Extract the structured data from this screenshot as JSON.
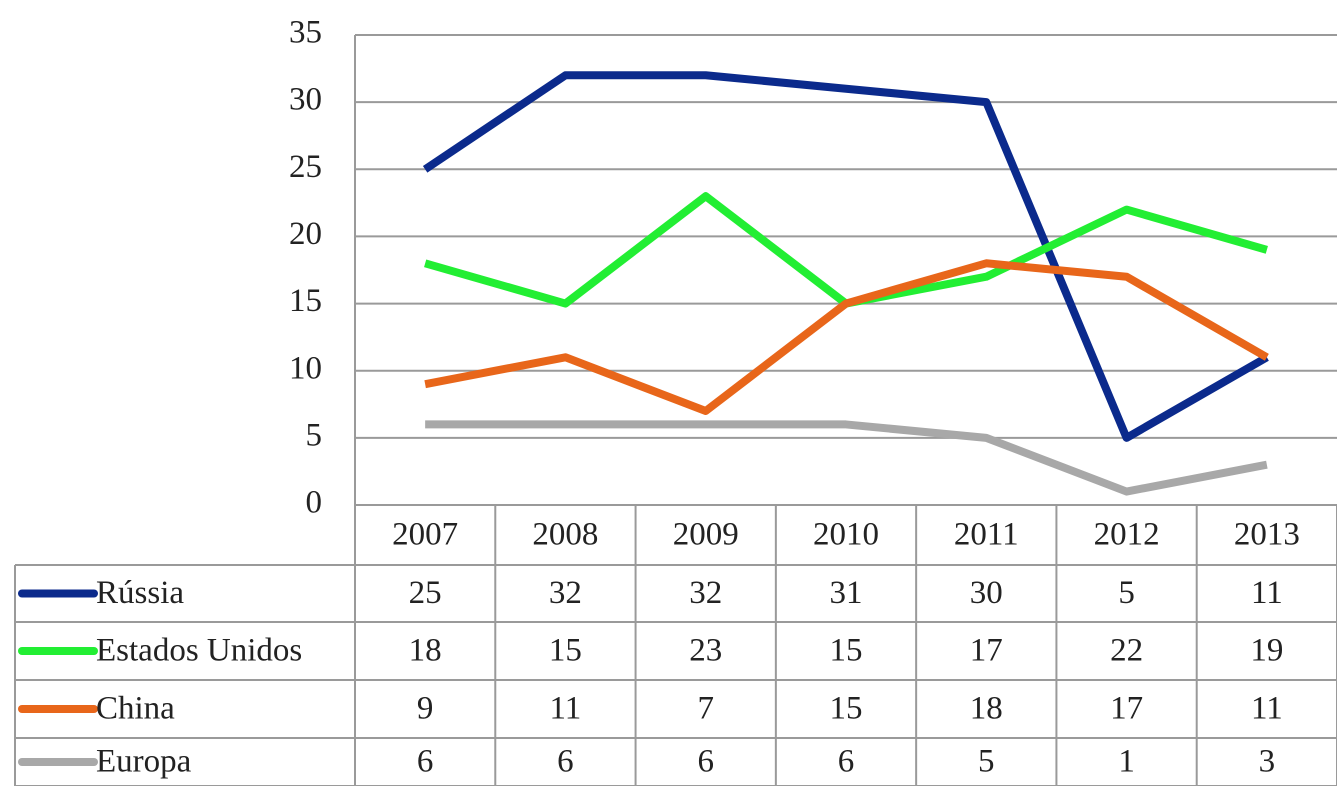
{
  "chart_data": {
    "type": "line",
    "categories": [
      "2007",
      "2008",
      "2009",
      "2010",
      "2011",
      "2012",
      "2013"
    ],
    "series": [
      {
        "name": "Rússia",
        "color": "#0b2a8c",
        "values": [
          25,
          32,
          32,
          31,
          30,
          5,
          11
        ]
      },
      {
        "name": "Estados Unidos",
        "color": "#22ee33",
        "values": [
          18,
          15,
          23,
          15,
          17,
          22,
          19
        ]
      },
      {
        "name": "China",
        "color": "#e8661a",
        "values": [
          9,
          11,
          7,
          15,
          18,
          17,
          11
        ]
      },
      {
        "name": "Europa",
        "color": "#a8a8a8",
        "values": [
          6,
          6,
          6,
          6,
          5,
          1,
          3
        ]
      }
    ],
    "ylim": [
      0,
      35
    ],
    "yticks": [
      0,
      5,
      10,
      15,
      20,
      25,
      30,
      35
    ],
    "grid": true
  }
}
